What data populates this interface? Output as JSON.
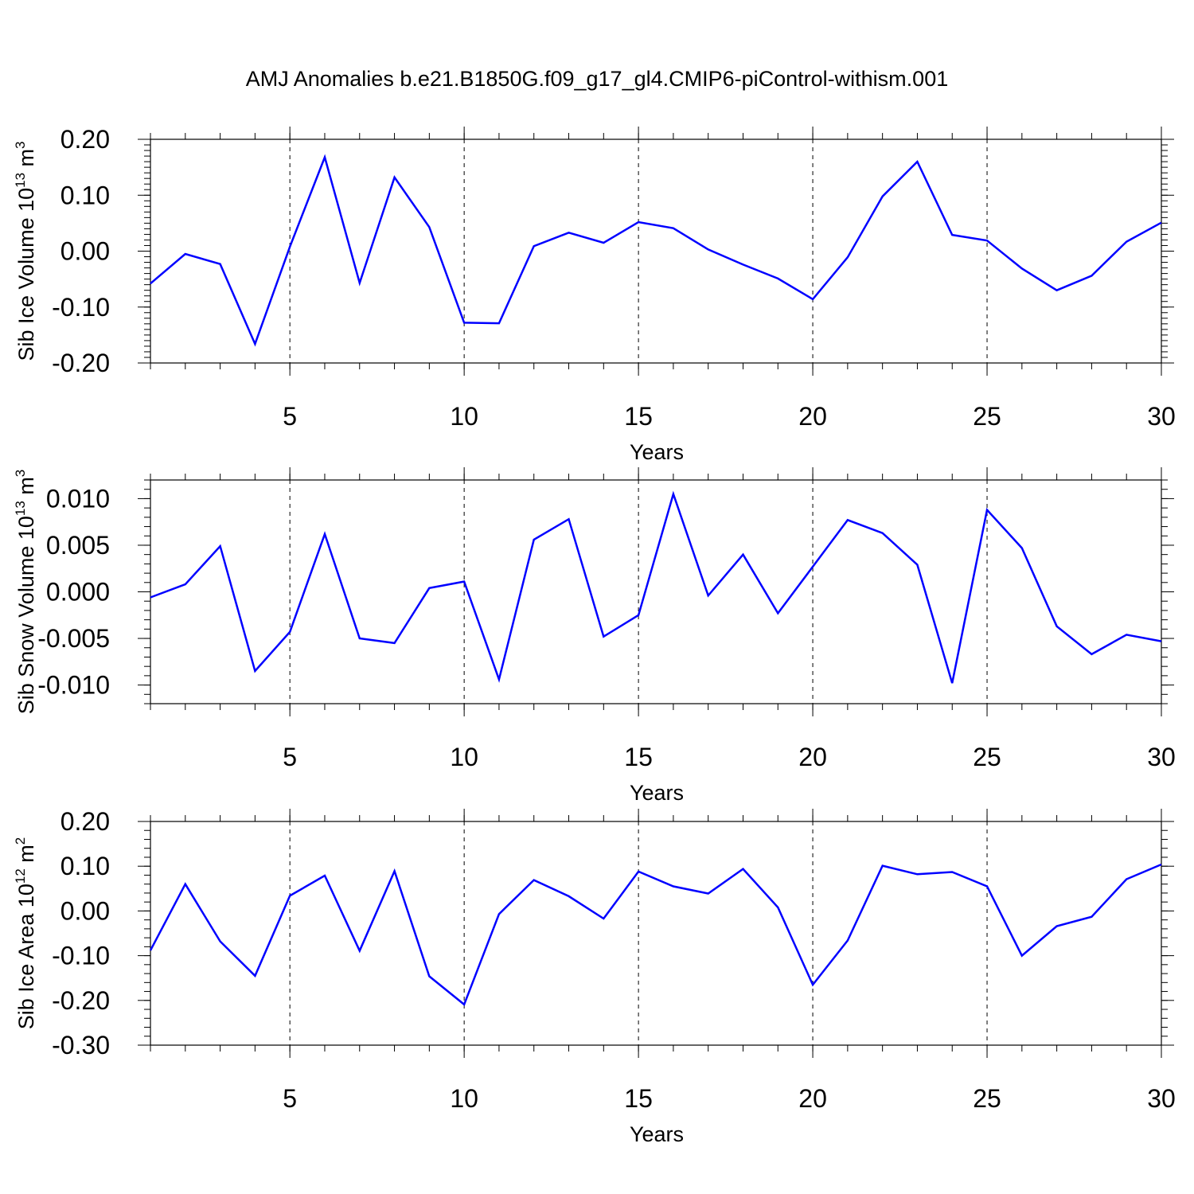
{
  "figure": {
    "title": "AMJ Anomalies b.e21.B1850G.f09_g17_gl4.CMIP6-piControl-withism.001"
  },
  "chart_data": [
    {
      "type": "line",
      "title": "",
      "xlabel": "Years",
      "ylabel": "Sib Ice Volume 10",
      "ylabel_exp": "13",
      "ylabel_unit": "m",
      "ylabel_unit_exp": "3",
      "xlim": [
        1,
        30
      ],
      "ylim": [
        -0.2,
        0.2
      ],
      "xticks": [
        5,
        10,
        15,
        20,
        25,
        30
      ],
      "xtick_labels": [
        "5",
        "10",
        "15",
        "20",
        "25",
        "30"
      ],
      "yticks": [
        -0.2,
        -0.1,
        0.0,
        0.1,
        0.2
      ],
      "ytick_labels": [
        "-0.20",
        "-0.10",
        "0.00",
        "0.10",
        "0.20"
      ],
      "grid": "vertical dashed at major x ticks",
      "line_color": "#0000ff",
      "x": [
        1,
        2,
        3,
        4,
        5,
        6,
        7,
        8,
        9,
        10,
        11,
        12,
        13,
        14,
        15,
        16,
        17,
        18,
        19,
        20,
        21,
        22,
        23,
        24,
        25,
        26,
        27,
        28,
        29,
        30
      ],
      "y": [
        -0.058,
        -0.005,
        -0.023,
        -0.166,
        0.008,
        0.168,
        -0.057,
        0.132,
        0.043,
        -0.128,
        -0.129,
        0.009,
        0.033,
        0.015,
        0.052,
        0.041,
        0.003,
        -0.024,
        -0.049,
        -0.086,
        -0.011,
        0.098,
        0.16,
        0.029,
        0.019,
        -0.031,
        -0.07,
        -0.044,
        0.017,
        0.051
      ]
    },
    {
      "type": "line",
      "title": "",
      "xlabel": "Years",
      "ylabel": "Sib Snow Volume 10",
      "ylabel_exp": "13",
      "ylabel_unit": "m",
      "ylabel_unit_exp": "3",
      "xlim": [
        1,
        30
      ],
      "ylim": [
        -0.012,
        0.012
      ],
      "xticks": [
        5,
        10,
        15,
        20,
        25,
        30
      ],
      "xtick_labels": [
        "5",
        "10",
        "15",
        "20",
        "25",
        "30"
      ],
      "yticks": [
        -0.01,
        -0.005,
        0.0,
        0.005,
        0.01
      ],
      "ytick_labels": [
        "-0.010",
        "-0.005",
        "0.000",
        "0.005",
        "0.010"
      ],
      "grid": "vertical dashed at major x ticks",
      "line_color": "#0000ff",
      "x": [
        1,
        2,
        3,
        4,
        5,
        6,
        7,
        8,
        9,
        10,
        11,
        12,
        13,
        14,
        15,
        16,
        17,
        18,
        19,
        20,
        21,
        22,
        23,
        24,
        25,
        26,
        27,
        28,
        29,
        30
      ],
      "y": [
        -0.0006,
        0.0008,
        0.0049,
        -0.0085,
        -0.0043,
        0.0062,
        -0.005,
        -0.0055,
        0.0004,
        0.0011,
        -0.0094,
        0.0056,
        0.0078,
        -0.0048,
        -0.0025,
        0.0105,
        -0.0004,
        0.004,
        -0.0023,
        0.0027,
        0.0077,
        0.0063,
        0.0029,
        -0.0098,
        0.0088,
        0.0047,
        -0.0037,
        -0.0067,
        -0.0046,
        -0.0053
      ]
    },
    {
      "type": "line",
      "title": "",
      "xlabel": "Years",
      "ylabel": "Sib Ice Area 10",
      "ylabel_exp": "12",
      "ylabel_unit": "m",
      "ylabel_unit_exp": "2",
      "xlim": [
        1,
        30
      ],
      "ylim": [
        -0.3,
        0.2
      ],
      "xticks": [
        5,
        10,
        15,
        20,
        25,
        30
      ],
      "xtick_labels": [
        "5",
        "10",
        "15",
        "20",
        "25",
        "30"
      ],
      "yticks": [
        -0.3,
        -0.2,
        -0.1,
        0.0,
        0.1,
        0.2
      ],
      "ytick_labels": [
        "-0.30",
        "-0.20",
        "-0.10",
        "0.00",
        "0.10",
        "0.20"
      ],
      "grid": "vertical dashed at major x ticks",
      "line_color": "#0000ff",
      "x": [
        1,
        2,
        3,
        4,
        5,
        6,
        7,
        8,
        9,
        10,
        11,
        12,
        13,
        14,
        15,
        16,
        17,
        18,
        19,
        20,
        21,
        22,
        23,
        24,
        25,
        26,
        27,
        28,
        29,
        30
      ],
      "y": [
        -0.088,
        0.06,
        -0.068,
        -0.145,
        0.034,
        0.079,
        -0.089,
        0.089,
        -0.146,
        -0.209,
        -0.007,
        0.069,
        0.033,
        -0.017,
        0.088,
        0.055,
        0.039,
        0.094,
        0.008,
        -0.165,
        -0.066,
        0.101,
        0.082,
        0.087,
        0.055,
        -0.1,
        -0.034,
        -0.013,
        0.071,
        0.104
      ]
    }
  ]
}
